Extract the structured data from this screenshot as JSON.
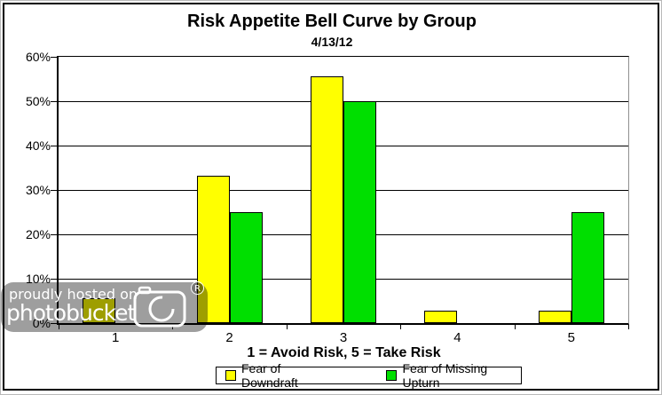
{
  "watermark": {
    "line1": "proudly hosted on",
    "line2": "photobucket",
    "registered": "R"
  },
  "chart_data": {
    "type": "bar",
    "title": "Risk Appetite Bell Curve by Group",
    "subtitle": "4/13/12",
    "categories": [
      "1",
      "2",
      "3",
      "4",
      "5"
    ],
    "series": [
      {
        "name": "Fear of Downdraft",
        "color": "#FFFF00",
        "values": [
          5.6,
          33.3,
          55.6,
          2.8,
          2.8
        ]
      },
      {
        "name": "Fear of Missing Upturn",
        "color": "#00DF00",
        "values": [
          0,
          25,
          50,
          0,
          25
        ]
      }
    ],
    "xlabel": "1 = Avoid Risk, 5 = Take Risk",
    "ylabel": "",
    "ylim": [
      0,
      60
    ],
    "ytick_step": 10,
    "ytick_labels": [
      "0%",
      "10%",
      "20%",
      "30%",
      "40%",
      "50%",
      "60%"
    ],
    "grid": "horizontal",
    "legend_position": "bottom",
    "bar_border_color": "#000000"
  }
}
